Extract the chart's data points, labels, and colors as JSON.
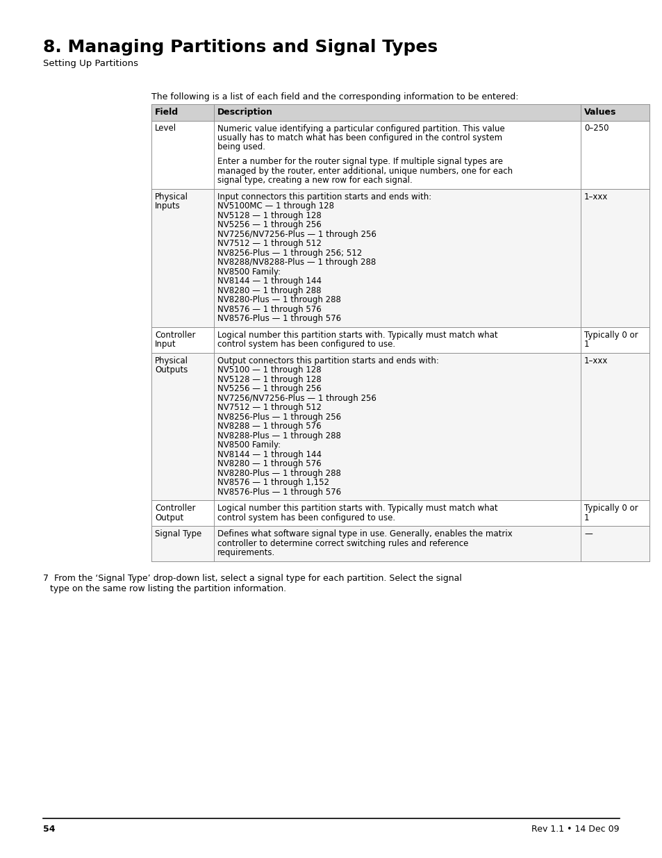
{
  "title": "8. Managing Partitions and Signal Types",
  "subtitle": "Setting Up Partitions",
  "intro_text": "The following is a list of each field and the corresponding information to be entered:",
  "table_header": [
    "Field",
    "Description",
    "Values"
  ],
  "header_bg": "#d0d0d0",
  "page_number": "54",
  "footer_right": "Rev 1.1 • 14 Dec 09",
  "rows": [
    {
      "field": [
        "Level"
      ],
      "description": [
        [
          "Numeric value identifying a particular configured partition. This value",
          "usually has to match what has been configured in the control system",
          "being used."
        ],
        [
          ""
        ],
        [
          "Enter a number for the router signal type. If multiple signal types are",
          "managed by the router, enter additional, unique numbers, one for each",
          "signal type, creating a new row for each signal."
        ]
      ],
      "values": [
        "0–250"
      ]
    },
    {
      "field": [
        "Physical",
        "Inputs"
      ],
      "description": [
        [
          "Input connectors this partition starts and ends with:"
        ],
        [
          "NV5100MC — 1 through 128"
        ],
        [
          "NV5128 — 1 through 128"
        ],
        [
          "NV5256 — 1 through 256"
        ],
        [
          "NV7256/NV7256-Plus — 1 through 256"
        ],
        [
          "NV7512 — 1 through 512"
        ],
        [
          "NV8256-Plus — 1 through 256; 512"
        ],
        [
          "NV8288/NV8288-Plus — 1 through 288"
        ],
        [
          "NV8500 Family:"
        ],
        [
          "NV8144 — 1 through 144"
        ],
        [
          "NV8280 — 1 through 288"
        ],
        [
          "NV8280-Plus — 1 through 288"
        ],
        [
          "NV8576 — 1 through 576"
        ],
        [
          "NV8576-Plus — 1 through 576"
        ]
      ],
      "values": [
        "1–xxx"
      ]
    },
    {
      "field": [
        "Controller",
        "Input"
      ],
      "description": [
        [
          "Logical number this partition starts with. Typically must match what",
          "control system has been configured to use."
        ]
      ],
      "values": [
        "Typically 0 or",
        "1"
      ]
    },
    {
      "field": [
        "Physical",
        "Outputs"
      ],
      "description": [
        [
          "Output connectors this partition starts and ends with:"
        ],
        [
          "NV5100 — 1 through 128"
        ],
        [
          "NV5128 — 1 through 128"
        ],
        [
          "NV5256 — 1 through 256"
        ],
        [
          "NV7256/NV7256-Plus — 1 through 256"
        ],
        [
          "NV7512 — 1 through 512"
        ],
        [
          "NV8256-Plus — 1 through 256"
        ],
        [
          "NV8288 — 1 through 576"
        ],
        [
          "NV8288-Plus — 1 through 288"
        ],
        [
          "NV8500 Family:"
        ],
        [
          "NV8144 — 1 through 144"
        ],
        [
          "NV8280 — 1 through 576"
        ],
        [
          "NV8280-Plus — 1 through 288"
        ],
        [
          "NV8576 — 1 through 1,152"
        ],
        [
          "NV8576-Plus — 1 through 576"
        ]
      ],
      "values": [
        "1–xxx"
      ]
    },
    {
      "field": [
        "Controller",
        "Output"
      ],
      "description": [
        [
          "Logical number this partition starts with. Typically must match what",
          "control system has been configured to use."
        ]
      ],
      "values": [
        "Typically 0 or",
        "1"
      ]
    },
    {
      "field": [
        "Signal Type"
      ],
      "description": [
        [
          "Defines what software signal type in use. Generally, enables the matrix",
          "controller to determine correct switching rules and reference",
          "requirements."
        ]
      ],
      "values": [
        "—"
      ]
    }
  ],
  "footer_note_line1": "7  From the ‘Signal Type’ drop-down list, select a signal type for each partition. Select the signal",
  "footer_note_line2": "    type on the same row listing the partition information."
}
